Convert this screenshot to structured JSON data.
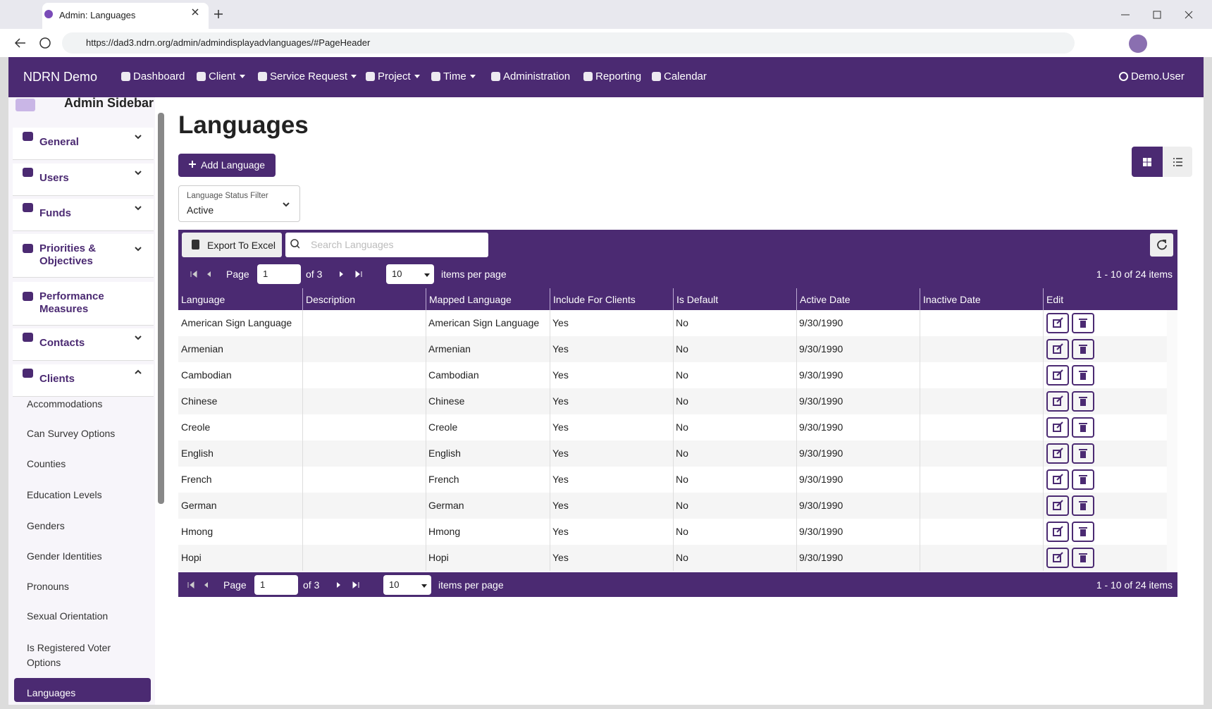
{
  "browser": {
    "tab_title": "Admin: Languages",
    "url": "https://dad3.ndrn.org/admin/admindisplayadvlanguages/#PageHeader"
  },
  "navbar": {
    "brand": "NDRN Demo",
    "items": [
      "Dashboard",
      "Client",
      "Service Request",
      "Project",
      "Time",
      "Administration",
      "Reporting",
      "Calendar"
    ],
    "user": "Demo.User"
  },
  "sidebar": {
    "title": "Admin Sidebar",
    "sections": [
      "General",
      "Users",
      "Funds",
      "Priorities & Objectives",
      "Performance Measures",
      "Contacts",
      "Clients"
    ],
    "items": [
      "Accommodations",
      "Can Survey Options",
      "Counties",
      "Education Levels",
      "Genders",
      "Gender Identities",
      "Pronouns",
      "Sexual Orientation",
      "Is Registered Voter Options",
      "Languages"
    ]
  },
  "page": {
    "title": "Languages",
    "add_button": "Add Language",
    "filter_label": "Language Status Filter",
    "filter_value": "Active"
  },
  "grid": {
    "export": "Export To Excel",
    "search_placeholder": "Search Languages",
    "pager": {
      "page_label": "Page",
      "page": "1",
      "of": "of 3",
      "page_size": "10",
      "per_page": "items per page",
      "summary": "1 - 10 of 24 items"
    },
    "columns": [
      "Language",
      "Description",
      "Mapped Language",
      "Include For Clients",
      "Is Default",
      "Active Date",
      "Inactive Date",
      "Edit"
    ],
    "rows": [
      {
        "language": "American Sign Language",
        "mapped_language": "American Sign Language",
        "include_for_clients": "Yes",
        "is_default": "No",
        "active_date": "9/30/1990"
      },
      {
        "language": "Armenian",
        "mapped_language": "Armenian",
        "include_for_clients": "Yes",
        "is_default": "No",
        "active_date": "9/30/1990"
      },
      {
        "language": "Cambodian",
        "mapped_language": "Cambodian",
        "include_for_clients": "Yes",
        "is_default": "No",
        "active_date": "9/30/1990"
      },
      {
        "language": "Chinese",
        "mapped_language": "Chinese",
        "include_for_clients": "Yes",
        "is_default": "No",
        "active_date": "9/30/1990"
      },
      {
        "language": "Creole",
        "mapped_language": "Creole",
        "include_for_clients": "Yes",
        "is_default": "No",
        "active_date": "9/30/1990"
      },
      {
        "language": "English",
        "mapped_language": "English",
        "include_for_clients": "Yes",
        "is_default": "No",
        "active_date": "9/30/1990"
      },
      {
        "language": "French",
        "mapped_language": "French",
        "include_for_clients": "Yes",
        "is_default": "No",
        "active_date": "9/30/1990"
      },
      {
        "language": "German",
        "mapped_language": "German",
        "include_for_clients": "Yes",
        "is_default": "No",
        "active_date": "9/30/1990"
      },
      {
        "language": "Hmong",
        "mapped_language": "Hmong",
        "include_for_clients": "Yes",
        "is_default": "No",
        "active_date": "9/30/1990"
      },
      {
        "language": "Hopi",
        "mapped_language": "Hopi",
        "include_for_clients": "Yes",
        "is_default": "No",
        "active_date": "9/30/1990"
      }
    ]
  }
}
